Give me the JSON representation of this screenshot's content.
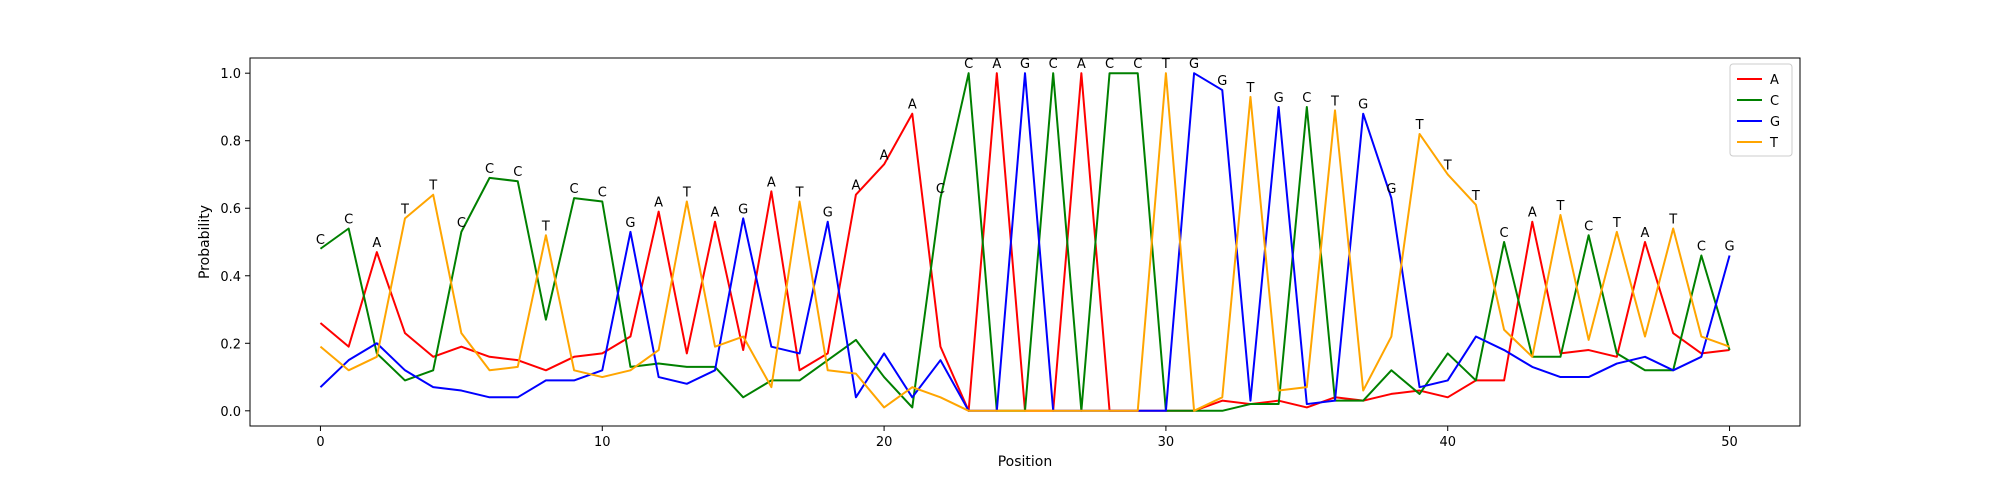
{
  "chart_data": {
    "type": "line",
    "title": "",
    "xlabel": "Position",
    "ylabel": "Probability",
    "xlim": [
      -2.5,
      52.5
    ],
    "ylim": [
      -0.045,
      1.045
    ],
    "x_ticks": [
      0,
      10,
      20,
      30,
      40,
      50
    ],
    "y_ticks": [
      0.0,
      0.2,
      0.4,
      0.6,
      0.8,
      1.0
    ],
    "y_tick_labels": [
      "0.0",
      "0.2",
      "0.4",
      "0.6",
      "0.8",
      "1.0"
    ],
    "grid": false,
    "legend_position": "top-right",
    "x": [
      0,
      1,
      2,
      3,
      4,
      5,
      6,
      7,
      8,
      9,
      10,
      11,
      12,
      13,
      14,
      15,
      16,
      17,
      18,
      19,
      20,
      21,
      22,
      23,
      24,
      25,
      26,
      27,
      28,
      29,
      30,
      31,
      32,
      33,
      34,
      35,
      36,
      37,
      38,
      39,
      40,
      41,
      42,
      43,
      44,
      45,
      46,
      47,
      48,
      49,
      50
    ],
    "series": [
      {
        "name": "A",
        "color": "#ff0000",
        "values": [
          0.26,
          0.19,
          0.47,
          0.23,
          0.16,
          0.19,
          0.16,
          0.15,
          0.12,
          0.16,
          0.17,
          0.22,
          0.59,
          0.17,
          0.56,
          0.18,
          0.65,
          0.12,
          0.17,
          0.64,
          0.73,
          0.88,
          0.19,
          0.0,
          1.0,
          0.0,
          0.0,
          1.0,
          0.0,
          0.0,
          0.0,
          0.0,
          0.03,
          0.02,
          0.03,
          0.01,
          0.04,
          0.03,
          0.05,
          0.06,
          0.04,
          0.09,
          0.09,
          0.56,
          0.17,
          0.18,
          0.16,
          0.5,
          0.23,
          0.17,
          0.18
        ]
      },
      {
        "name": "C",
        "color": "#008000",
        "values": [
          0.48,
          0.54,
          0.17,
          0.09,
          0.12,
          0.53,
          0.69,
          0.68,
          0.27,
          0.63,
          0.62,
          0.13,
          0.14,
          0.13,
          0.13,
          0.04,
          0.09,
          0.09,
          0.15,
          0.21,
          0.1,
          0.01,
          0.63,
          1.0,
          0.0,
          0.0,
          1.0,
          0.0,
          1.0,
          1.0,
          0.0,
          0.0,
          0.0,
          0.02,
          0.02,
          0.9,
          0.03,
          0.03,
          0.12,
          0.05,
          0.17,
          0.09,
          0.5,
          0.16,
          0.16,
          0.52,
          0.17,
          0.12,
          0.12,
          0.46,
          0.18
        ]
      },
      {
        "name": "G",
        "color": "#0000ff",
        "values": [
          0.07,
          0.15,
          0.2,
          0.12,
          0.07,
          0.06,
          0.04,
          0.04,
          0.09,
          0.09,
          0.12,
          0.53,
          0.1,
          0.08,
          0.12,
          0.57,
          0.19,
          0.17,
          0.56,
          0.04,
          0.17,
          0.04,
          0.15,
          0.0,
          0.0,
          1.0,
          0.0,
          0.0,
          0.0,
          0.0,
          0.0,
          1.0,
          0.95,
          0.03,
          0.9,
          0.02,
          0.03,
          0.88,
          0.63,
          0.07,
          0.09,
          0.22,
          0.18,
          0.13,
          0.1,
          0.1,
          0.14,
          0.16,
          0.12,
          0.16,
          0.46
        ]
      },
      {
        "name": "T",
        "color": "#ffa500",
        "values": [
          0.19,
          0.12,
          0.16,
          0.57,
          0.64,
          0.23,
          0.12,
          0.13,
          0.52,
          0.12,
          0.1,
          0.12,
          0.18,
          0.62,
          0.19,
          0.22,
          0.07,
          0.62,
          0.12,
          0.11,
          0.01,
          0.07,
          0.04,
          0.0,
          0.0,
          0.0,
          0.0,
          0.0,
          0.0,
          0.0,
          1.0,
          0.0,
          0.04,
          0.93,
          0.06,
          0.07,
          0.89,
          0.06,
          0.22,
          0.82,
          0.7,
          0.61,
          0.24,
          0.16,
          0.58,
          0.21,
          0.53,
          0.22,
          0.54,
          0.22,
          0.19
        ]
      }
    ],
    "peak_labels": [
      "C",
      "C",
      "A",
      "T",
      "T",
      "C",
      "C",
      "C",
      "T",
      "C",
      "C",
      "G",
      "A",
      "T",
      "A",
      "G",
      "A",
      "T",
      "G",
      "A",
      "A",
      "A",
      "C",
      "C",
      "A",
      "G",
      "C",
      "A",
      "C",
      "C",
      "T",
      "G",
      "G",
      "T",
      "G",
      "C",
      "T",
      "G",
      "G",
      "T",
      "T",
      "T",
      "C",
      "A",
      "T",
      "C",
      "T",
      "A",
      "T",
      "C",
      "G"
    ]
  }
}
